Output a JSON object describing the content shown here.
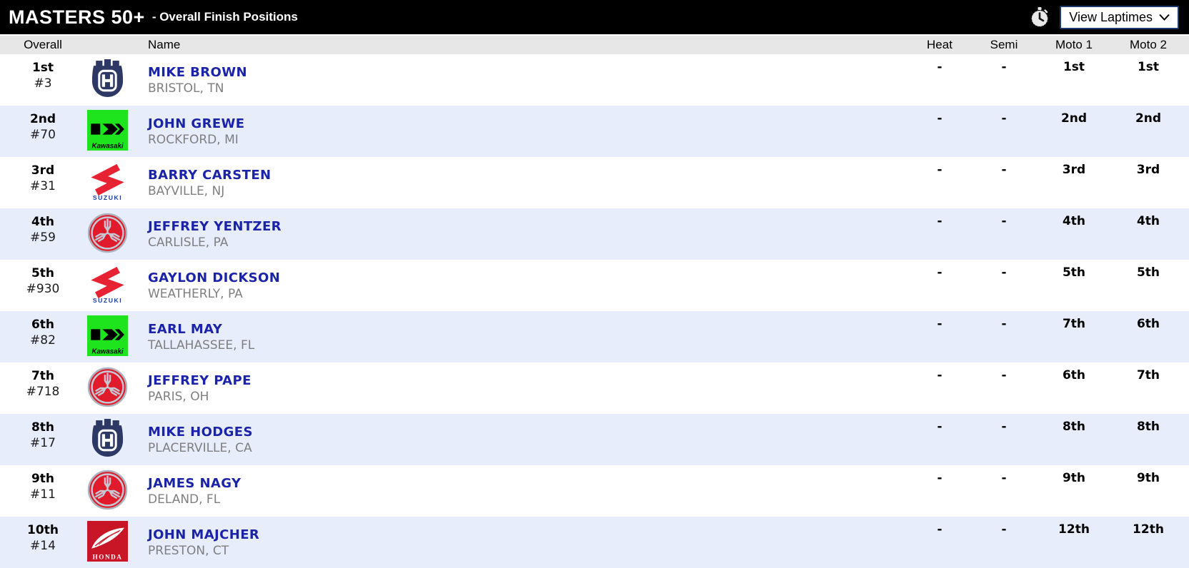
{
  "header": {
    "title": "MASTERS 50+",
    "subtitle": "- Overall Finish Positions",
    "view_laptimes_label": "View Laptimes"
  },
  "table": {
    "columns": {
      "overall": "Overall",
      "name": "Name",
      "heat": "Heat",
      "semi": "Semi",
      "moto1": "Moto 1",
      "moto2": "Moto 2"
    },
    "rows": [
      {
        "overall": "1st",
        "number": "#3",
        "brand": "husqvarna",
        "name": "MIKE BROWN",
        "location": "BRISTOL, TN",
        "heat": "-",
        "semi": "-",
        "moto1": "1st",
        "moto2": "1st"
      },
      {
        "overall": "2nd",
        "number": "#70",
        "brand": "kawasaki",
        "name": "JOHN GREWE",
        "location": "ROCKFORD, MI",
        "heat": "-",
        "semi": "-",
        "moto1": "2nd",
        "moto2": "2nd"
      },
      {
        "overall": "3rd",
        "number": "#31",
        "brand": "suzuki",
        "name": "BARRY CARSTEN",
        "location": "BAYVILLE, NJ",
        "heat": "-",
        "semi": "-",
        "moto1": "3rd",
        "moto2": "3rd"
      },
      {
        "overall": "4th",
        "number": "#59",
        "brand": "yamaha",
        "name": "JEFFREY YENTZER",
        "location": "CARLISLE, PA",
        "heat": "-",
        "semi": "-",
        "moto1": "4th",
        "moto2": "4th"
      },
      {
        "overall": "5th",
        "number": "#930",
        "brand": "suzuki",
        "name": "GAYLON DICKSON",
        "location": "WEATHERLY, PA",
        "heat": "-",
        "semi": "-",
        "moto1": "5th",
        "moto2": "5th"
      },
      {
        "overall": "6th",
        "number": "#82",
        "brand": "kawasaki",
        "name": "EARL MAY",
        "location": "TALLAHASSEE, FL",
        "heat": "-",
        "semi": "-",
        "moto1": "7th",
        "moto2": "6th"
      },
      {
        "overall": "7th",
        "number": "#718",
        "brand": "yamaha",
        "name": "JEFFREY PAPE",
        "location": "PARIS, OH",
        "heat": "-",
        "semi": "-",
        "moto1": "6th",
        "moto2": "7th"
      },
      {
        "overall": "8th",
        "number": "#17",
        "brand": "husqvarna",
        "name": "MIKE HODGES",
        "location": "PLACERVILLE, CA",
        "heat": "-",
        "semi": "-",
        "moto1": "8th",
        "moto2": "8th"
      },
      {
        "overall": "9th",
        "number": "#11",
        "brand": "yamaha",
        "name": "JAMES NAGY",
        "location": "DELAND, FL",
        "heat": "-",
        "semi": "-",
        "moto1": "9th",
        "moto2": "9th"
      },
      {
        "overall": "10th",
        "number": "#14",
        "brand": "honda",
        "name": "JOHN MAJCHER",
        "location": "PRESTON, CT",
        "heat": "-",
        "semi": "-",
        "moto1": "12th",
        "moto2": "12th"
      }
    ]
  },
  "logo_text": {
    "kawasaki": "Kawasaki",
    "suzuki": "SUZUKI",
    "honda": "HONDA"
  },
  "colors": {
    "title_bar_bg": "#000000",
    "column_header_bg": "#e7e7e7",
    "row_alt_bg": "#e8edfc",
    "rider_link_blue": "#1b24a8",
    "location_gray": "#7f7f7f",
    "button_border_navy": "#1d3a6e",
    "husqvarna_navy": "#2d3964",
    "kawasaki_green": "#1ee41e",
    "suzuki_red": "#e62233",
    "suzuki_blue": "#1c3f9e",
    "yamaha_red": "#e01b2c",
    "honda_red": "#c81626"
  }
}
